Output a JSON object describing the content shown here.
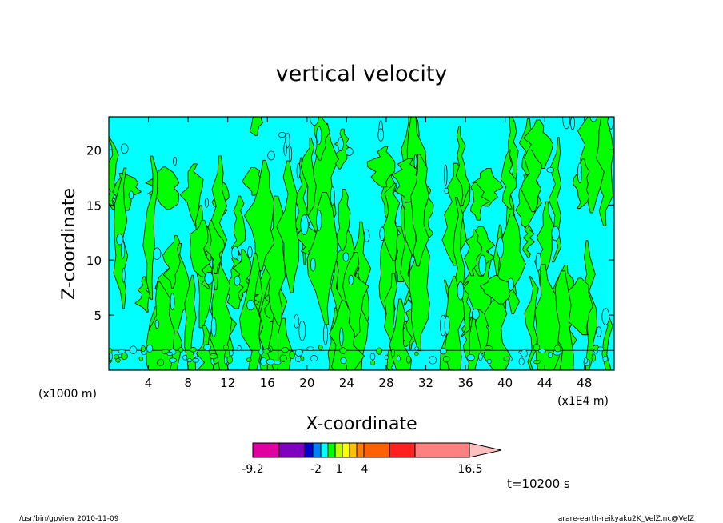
{
  "chart_data": {
    "type": "heatmap",
    "title": "vertical velocity",
    "xlabel": "X-coordinate",
    "ylabel": "Z-coordinate",
    "x_unit": "(x1E4 m)",
    "y_unit": "(x1000 m)",
    "xlim": [
      0,
      51
    ],
    "ylim": [
      0,
      23
    ],
    "x_ticks": [
      4,
      8,
      12,
      16,
      20,
      24,
      28,
      32,
      36,
      40,
      44,
      48
    ],
    "y_ticks": [
      5,
      10,
      15,
      20
    ],
    "grid": false,
    "dominant_fields": [
      {
        "level_range": [
          -2,
          0
        ],
        "color": "#00ffff"
      },
      {
        "level_range": [
          0,
          1
        ],
        "color": "#00ff00"
      }
    ],
    "colorbar": {
      "tick_labels": [
        "-9.2",
        "-2",
        "1",
        "4",
        "16.5"
      ],
      "tick_values": [
        -9.2,
        -2,
        1,
        4,
        16.5
      ],
      "colors": [
        "#e000a0",
        "#8000c0",
        "#0000d0",
        "#0080ff",
        "#00ffff",
        "#00ff00",
        "#c0ff00",
        "#ffff00",
        "#ffc000",
        "#ff8000",
        "#ff6000",
        "#ff2020",
        "#ff8080",
        "#ffc0c0"
      ],
      "extend": "max"
    },
    "time_label": "t=10200 s"
  },
  "footer": {
    "left": "/usr/bin/gpview   2010-11-09",
    "right": "arare-earth-reikyaku2K_VelZ.nc@VelZ"
  }
}
